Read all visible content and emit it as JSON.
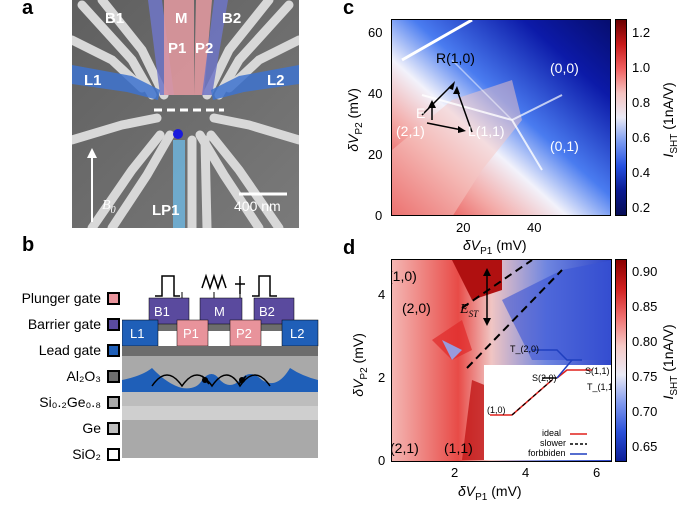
{
  "panels": {
    "a": "a",
    "b": "b",
    "c": "c",
    "d": "d"
  },
  "panel_a": {
    "gate_labels": {
      "b1": "B1",
      "m": "M",
      "b2": "B2",
      "p1": "P1",
      "p2": "P2",
      "l1": "L1",
      "l2": "L2",
      "lp1": "LP1"
    },
    "field_label": "B",
    "field_sub": "0",
    "scale_bar": "400 nm"
  },
  "panel_b": {
    "legend": [
      {
        "label": "Plunger gate",
        "color": "#e8939b"
      },
      {
        "label": "Barrier gate",
        "color": "#5a4a9e"
      },
      {
        "label": "Lead gate",
        "color": "#1f5fb8"
      },
      {
        "label": "Al₂O₃",
        "color": "#6d6d6d"
      },
      {
        "label": "Si₀.₂Ge₀.₈",
        "color": "#a9a9a9"
      },
      {
        "label": "Ge",
        "color": "#bdbdbd"
      },
      {
        "label": "SiO₂",
        "color": "#ffffff"
      }
    ],
    "gate_labels": {
      "l1": "L1",
      "b1": "B1",
      "p1": "P1",
      "m": "M",
      "p2": "P2",
      "b2": "B2",
      "l2": "L2"
    }
  },
  "panel_c": {
    "xlabel": "δV",
    "xlabel_sub": "P1",
    "xlabel_unit": " (mV)",
    "ylabel": "δV",
    "ylabel_sub": "P2",
    "ylabel_unit": " (mV)",
    "xticks": [
      "20",
      "40"
    ],
    "yticks": [
      "0",
      "20",
      "40",
      "60"
    ],
    "annotations": {
      "r": "R(1,0)",
      "e": "E",
      "e2": "(2,1)",
      "l": "L(1,1)",
      "s00": "(0,0)",
      "s01": "(0,1)"
    },
    "colorbar_label": "I",
    "colorbar_sub": "SHT",
    "colorbar_unit": " (1nA/V)",
    "colorbar_ticks": [
      "1.2",
      "1.0",
      "0.8",
      "0.6",
      "0.4",
      "0.2"
    ]
  },
  "panel_d": {
    "xlabel": "δV",
    "xlabel_sub": "P1",
    "xlabel_unit": " (mV)",
    "ylabel": "δV",
    "ylabel_sub": "P2",
    "ylabel_unit": " (mV)",
    "xticks": [
      "2",
      "4",
      "6"
    ],
    "yticks": [
      "0",
      "2",
      "4"
    ],
    "annotations": {
      "s10": "(1,0)",
      "s20": "(2,0)",
      "est": "E",
      "est_sub": "ST",
      "s21": "(2,1)",
      "s11": "(1,1)"
    },
    "colorbar_label": "I",
    "colorbar_sub": "SHT",
    "colorbar_unit": " (1nA/V)",
    "colorbar_ticks": [
      "0.90",
      "0.85",
      "0.80",
      "0.75",
      "0.70",
      "0.65"
    ],
    "inset": {
      "labels": {
        "t20": "T_(2,0)",
        "s11": "S(1,1)",
        "s20": "S(2,0)",
        "t11": "T_(1,1)",
        "s10": "(1,0)"
      },
      "legend": [
        {
          "label": "ideal",
          "color": "#e0201b"
        },
        {
          "label": "slower",
          "color": "#000000"
        },
        {
          "label": "forbbiden",
          "color": "#1f3fbf"
        }
      ]
    }
  }
}
